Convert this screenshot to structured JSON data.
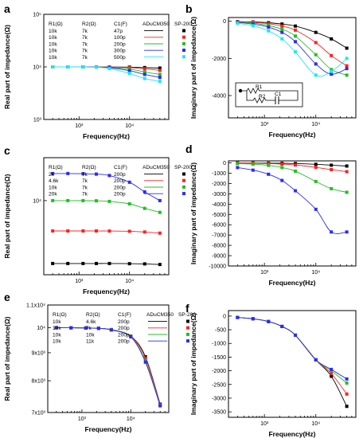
{
  "chart_data": [
    {
      "id": "a",
      "type": "line",
      "panel_label": "a",
      "xscale": "log",
      "yscale": "log",
      "xlabel": "Frequency(Hz)",
      "ylabel": "Real part of impedance(Ω)",
      "xlim": [
        200,
        60000
      ],
      "ylim": [
        1000,
        100000
      ],
      "xticks": [
        {
          "v": 1000,
          "t": "10³"
        },
        {
          "v": 10000,
          "t": "10⁴"
        }
      ],
      "yticks": [
        {
          "v": 1000,
          "t": "10³"
        },
        {
          "v": 10000,
          "t": "10⁴"
        },
        {
          "v": 100000,
          "t": "10⁵"
        }
      ],
      "legend": {
        "headers": [
          "R1(Ω)",
          "R2(Ω)",
          "C1(F)",
          "ADuCM350",
          "SP-200"
        ],
        "rows": [
          [
            "10k",
            "7k",
            "47p"
          ],
          [
            "10k",
            "7k",
            "100p"
          ],
          [
            "10k",
            "7k",
            "200p"
          ],
          [
            "10k",
            "7k",
            "300p"
          ],
          [
            "10k",
            "7k",
            "500p"
          ]
        ]
      },
      "x": [
        300,
        600,
        1200,
        2200,
        4000,
        10000,
        20000,
        40000
      ],
      "series": [
        {
          "color": "#000000",
          "values": [
            10000,
            10000,
            10000,
            9990,
            9960,
            9900,
            9700,
            9500
          ]
        },
        {
          "color": "#ff2020",
          "values": [
            10000,
            10000,
            10000,
            9980,
            9920,
            9700,
            9200,
            8600
          ]
        },
        {
          "color": "#20c020",
          "values": [
            10000,
            10000,
            9990,
            9950,
            9800,
            9100,
            8000,
            7200
          ]
        },
        {
          "color": "#2a2aff",
          "values": [
            10000,
            10000,
            9985,
            9920,
            9650,
            8500,
            7200,
            6300
          ]
        },
        {
          "color": "#20e8f0",
          "values": [
            10000,
            10000,
            9970,
            9850,
            9300,
            7500,
            6000,
            5300
          ]
        }
      ]
    },
    {
      "id": "b",
      "type": "line",
      "panel_label": "b",
      "xscale": "log",
      "yscale": "linear",
      "xlabel": "Frequency(Hz)",
      "ylabel": "Imaginary part of impedance(Ω)",
      "xlim": [
        200,
        60000
      ],
      "ylim": [
        -5200,
        200
      ],
      "xticks": [
        {
          "v": 1000,
          "t": "10³"
        },
        {
          "v": 10000,
          "t": "10⁴"
        }
      ],
      "yticks": [
        {
          "v": 0,
          "t": "0"
        },
        {
          "v": -2000,
          "t": "-2000"
        },
        {
          "v": -4000,
          "t": "-4000"
        }
      ],
      "circuit": {
        "r1": "R1",
        "r2": "R2",
        "c1": "C1"
      },
      "x": [
        300,
        600,
        1200,
        2200,
        4000,
        10000,
        20000,
        40000
      ],
      "series": [
        {
          "color": "#000000",
          "values": [
            -20,
            -40,
            -80,
            -150,
            -260,
            -600,
            -950,
            -1450
          ]
        },
        {
          "color": "#ff2020",
          "values": [
            -30,
            -60,
            -130,
            -260,
            -480,
            -1150,
            -1850,
            -2400
          ]
        },
        {
          "color": "#20c020",
          "values": [
            -50,
            -100,
            -230,
            -430,
            -800,
            -1800,
            -2600,
            -2900
          ]
        },
        {
          "color": "#2a2aff",
          "values": [
            -70,
            -150,
            -320,
            -600,
            -1100,
            -2300,
            -2850,
            -2550
          ]
        },
        {
          "color": "#20e8f0",
          "values": [
            -110,
            -240,
            -520,
            -950,
            -1650,
            -2900,
            -2700,
            -2000
          ]
        }
      ]
    },
    {
      "id": "c",
      "type": "line",
      "panel_label": "c",
      "xscale": "log",
      "yscale": "log",
      "xlabel": "Frequency(Hz)",
      "ylabel": "Real part of impedance(Ω)",
      "xlim": [
        200,
        60000
      ],
      "ylim": [
        1500,
        30000
      ],
      "xticks": [
        {
          "v": 1000,
          "t": "10³"
        },
        {
          "v": 10000,
          "t": "10⁴"
        }
      ],
      "yticks": [
        {
          "v": 10000,
          "t": "10⁴"
        }
      ],
      "legend": {
        "headers": [
          "R1(Ω)",
          "R2(Ω)",
          "C1(F)",
          "ADuCM350",
          "SP-200"
        ],
        "rows": [
          [
            "2k",
            "7k",
            "200p"
          ],
          [
            "4.6k",
            "7k",
            "200p"
          ],
          [
            "10k",
            "7k",
            "200p"
          ],
          [
            "20k",
            "7k",
            "200p"
          ]
        ]
      },
      "x": [
        300,
        600,
        1200,
        2200,
        4000,
        10000,
        20000,
        40000
      ],
      "series": [
        {
          "color": "#000000",
          "values": [
            2000,
            2000,
            2000,
            2000,
            2000,
            1990,
            1980,
            1950
          ]
        },
        {
          "color": "#ff2020",
          "values": [
            4600,
            4600,
            4600,
            4600,
            4590,
            4560,
            4480,
            4350
          ]
        },
        {
          "color": "#20c020",
          "values": [
            10000,
            10000,
            9990,
            9950,
            9800,
            9200,
            8200,
            7400
          ]
        },
        {
          "color": "#2a2aff",
          "values": [
            20000,
            20000,
            19900,
            19700,
            19000,
            16000,
            12500,
            10000
          ]
        }
      ]
    },
    {
      "id": "d",
      "type": "line",
      "panel_label": "d",
      "xscale": "log",
      "yscale": "linear",
      "xlabel": "Frequency(Hz)",
      "ylabel": "Imaginary part of impedance(Ω)",
      "xlim": [
        200,
        60000
      ],
      "ylim": [
        -10000,
        200
      ],
      "xticks": [
        {
          "v": 1000,
          "t": "10³"
        },
        {
          "v": 10000,
          "t": "10⁴"
        }
      ],
      "yticks": [
        {
          "v": 0,
          "t": "0"
        },
        {
          "v": -1000,
          "t": "-1000"
        },
        {
          "v": -2000,
          "t": "-2000"
        },
        {
          "v": -3000,
          "t": "-3000"
        },
        {
          "v": -4000,
          "t": "-4000"
        },
        {
          "v": -5000,
          "t": "-5000"
        },
        {
          "v": -6000,
          "t": "-6000"
        },
        {
          "v": -7000,
          "t": "-7000"
        },
        {
          "v": -8000,
          "t": "-8000"
        },
        {
          "v": -9000,
          "t": "-9000"
        },
        {
          "v": -10000,
          "t": "-10000"
        }
      ],
      "x": [
        300,
        600,
        1200,
        2200,
        4000,
        10000,
        20000,
        40000
      ],
      "series": [
        {
          "color": "#000000",
          "values": [
            -5,
            -10,
            -20,
            -35,
            -60,
            -130,
            -220,
            -300
          ]
        },
        {
          "color": "#ff2020",
          "values": [
            -15,
            -30,
            -60,
            -110,
            -200,
            -430,
            -650,
            -850
          ]
        },
        {
          "color": "#20c020",
          "values": [
            -60,
            -120,
            -240,
            -450,
            -800,
            -1800,
            -2500,
            -2850
          ]
        },
        {
          "color": "#2a2aff",
          "values": [
            -450,
            -700,
            -1100,
            -1700,
            -2700,
            -4500,
            -6700,
            -6700
          ]
        }
      ]
    },
    {
      "id": "e",
      "type": "line",
      "panel_label": "e",
      "xscale": "log",
      "yscale": "log",
      "xlabel": "Frequency(Hz)",
      "ylabel": "Real part of impedance(Ω)",
      "xlim": [
        200,
        60000
      ],
      "ylim": [
        7000,
        11000
      ],
      "xticks": [
        {
          "v": 1000,
          "t": "10³"
        },
        {
          "v": 10000,
          "t": "10⁴"
        }
      ],
      "yticks": [
        {
          "v": 11000,
          "t": "1.1x10⁴"
        },
        {
          "v": 10000,
          "t": "10⁴"
        },
        {
          "v": 9000,
          "t": "9x10³"
        },
        {
          "v": 8000,
          "t": "8x10³"
        },
        {
          "v": 7000,
          "t": "7x10³"
        }
      ],
      "legend": {
        "headers": [
          "R1(Ω)",
          "R2(Ω)",
          "C1(F)",
          "ADuCM350",
          "SP-200"
        ],
        "rows": [
          [
            "10k",
            "4.6k",
            "200p"
          ],
          [
            "10k",
            "7k",
            "200p"
          ],
          [
            "10k",
            "10k",
            "200p"
          ],
          [
            "10k",
            "11k",
            "200p"
          ]
        ]
      },
      "x": [
        300,
        600,
        1200,
        2200,
        4000,
        10000,
        20000,
        40000
      ],
      "series": [
        {
          "color": "#000000",
          "values": [
            10000,
            9995,
            9990,
            9975,
            9920,
            9650,
            8850,
            7250
          ]
        },
        {
          "color": "#ff2020",
          "values": [
            10000,
            9995,
            9988,
            9972,
            9915,
            9640,
            8800,
            7230
          ]
        },
        {
          "color": "#20c020",
          "values": [
            10000,
            9994,
            9986,
            9970,
            9910,
            9630,
            8700,
            7210
          ]
        },
        {
          "color": "#2a2aff",
          "values": [
            10000,
            9994,
            9985,
            9968,
            9905,
            9620,
            8650,
            7200
          ]
        }
      ]
    },
    {
      "id": "f",
      "type": "line",
      "panel_label": "f",
      "xscale": "log",
      "yscale": "linear",
      "xlabel": "Frequency(Hz)",
      "ylabel": "Imaginary part of impedance(Ω)",
      "xlim": [
        200,
        60000
      ],
      "ylim": [
        -3700,
        200
      ],
      "xticks": [
        {
          "v": 1000,
          "t": "10³"
        },
        {
          "v": 10000,
          "t": "10⁴"
        }
      ],
      "yticks": [
        {
          "v": 0,
          "t": "0"
        },
        {
          "v": -500,
          "t": "-500"
        },
        {
          "v": -1000,
          "t": "-1000"
        },
        {
          "v": -1500,
          "t": "-1500"
        },
        {
          "v": -2000,
          "t": "-2000"
        },
        {
          "v": -2500,
          "t": "-2500"
        },
        {
          "v": -3000,
          "t": "-3000"
        },
        {
          "v": -3500,
          "t": "-3500"
        }
      ],
      "x": [
        300,
        600,
        1200,
        2200,
        4000,
        10000,
        20000,
        40000
      ],
      "series": [
        {
          "color": "#000000",
          "values": [
            -50,
            -100,
            -200,
            -380,
            -700,
            -1600,
            -2200,
            -3300
          ]
        },
        {
          "color": "#ff2020",
          "values": [
            -50,
            -100,
            -200,
            -380,
            -700,
            -1600,
            -2100,
            -2850
          ]
        },
        {
          "color": "#20c020",
          "values": [
            -50,
            -100,
            -200,
            -380,
            -700,
            -1600,
            -2000,
            -2450
          ]
        },
        {
          "color": "#2a2aff",
          "values": [
            -50,
            -100,
            -200,
            -380,
            -700,
            -1600,
            -1950,
            -2300
          ]
        }
      ]
    }
  ]
}
